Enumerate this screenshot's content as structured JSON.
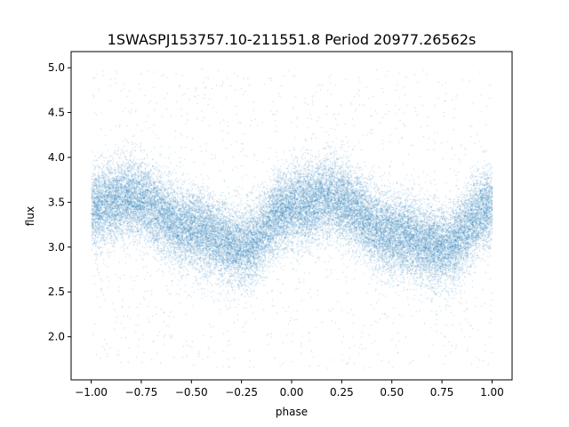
{
  "chart_data": {
    "type": "scatter",
    "title": "1SWASPJ153757.10-211551.8 Period 20977.26562s",
    "xlabel": "phase",
    "ylabel": "flux",
    "xlim": [
      -1.1,
      1.1
    ],
    "ylim": [
      1.52,
      5.18
    ],
    "xticks": [
      "−1.00",
      "−0.75",
      "−0.50",
      "−0.25",
      "0.00",
      "0.25",
      "0.50",
      "0.75",
      "1.00"
    ],
    "xtick_values": [
      -1.0,
      -0.75,
      -0.5,
      -0.25,
      0.0,
      0.25,
      0.5,
      0.75,
      1.0
    ],
    "yticks": [
      "2.0",
      "2.5",
      "3.0",
      "3.5",
      "4.0",
      "4.5",
      "5.0"
    ],
    "ytick_values": [
      2.0,
      2.5,
      3.0,
      3.5,
      4.0,
      4.5,
      5.0
    ],
    "marker_color": "#1f77b4",
    "grid": false,
    "series_profile": {
      "phase_range": [
        -1.0,
        1.0
      ],
      "points_per_unit_phase": 16000,
      "mean_flux_at_phase": {
        "x": [
          -1.0,
          -0.8,
          -0.5,
          -0.25,
          0.0,
          0.2,
          0.5,
          0.75,
          1.0
        ],
        "y": [
          3.45,
          3.55,
          3.2,
          3.0,
          3.45,
          3.55,
          3.15,
          3.0,
          3.45
        ]
      },
      "core_spread": 0.22,
      "outlier_fraction": 0.04,
      "outlier_range": [
        1.65,
        5.0
      ]
    }
  }
}
